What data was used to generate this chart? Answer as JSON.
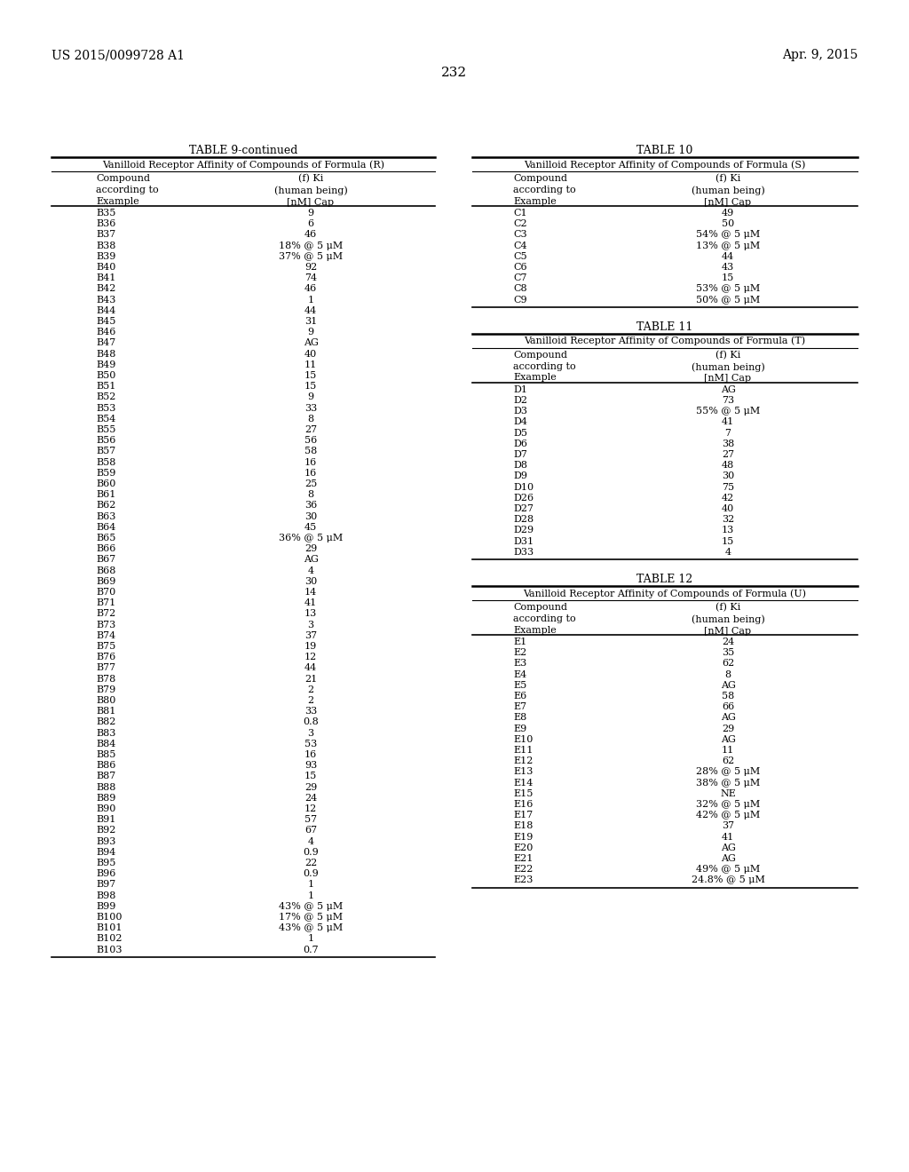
{
  "header_left": "US 2015/0099728 A1",
  "header_right": "Apr. 9, 2015",
  "page_number": "232",
  "background_color": "#ffffff",
  "table9_title": "TABLE 9-continued",
  "table9_subtitle": "Vanilloid Receptor Affinity of Compounds of Formula (R)",
  "table9_col1_header": "Compound\naccording to\nExample",
  "table9_col2_header": "(f) Ki\n(human being)\n[nM] Cap",
  "table9_data": [
    [
      "B35",
      "9"
    ],
    [
      "B36",
      "6"
    ],
    [
      "B37",
      "46"
    ],
    [
      "B38",
      "18% @ 5 μM"
    ],
    [
      "B39",
      "37% @ 5 μM"
    ],
    [
      "B40",
      "92"
    ],
    [
      "B41",
      "74"
    ],
    [
      "B42",
      "46"
    ],
    [
      "B43",
      "1"
    ],
    [
      "B44",
      "44"
    ],
    [
      "B45",
      "31"
    ],
    [
      "B46",
      "9"
    ],
    [
      "B47",
      "AG"
    ],
    [
      "B48",
      "40"
    ],
    [
      "B49",
      "11"
    ],
    [
      "B50",
      "15"
    ],
    [
      "B51",
      "15"
    ],
    [
      "B52",
      "9"
    ],
    [
      "B53",
      "33"
    ],
    [
      "B54",
      "8"
    ],
    [
      "B55",
      "27"
    ],
    [
      "B56",
      "56"
    ],
    [
      "B57",
      "58"
    ],
    [
      "B58",
      "16"
    ],
    [
      "B59",
      "16"
    ],
    [
      "B60",
      "25"
    ],
    [
      "B61",
      "8"
    ],
    [
      "B62",
      "36"
    ],
    [
      "B63",
      "30"
    ],
    [
      "B64",
      "45"
    ],
    [
      "B65",
      "36% @ 5 μM"
    ],
    [
      "B66",
      "29"
    ],
    [
      "B67",
      "AG"
    ],
    [
      "B68",
      "4"
    ],
    [
      "B69",
      "30"
    ],
    [
      "B70",
      "14"
    ],
    [
      "B71",
      "41"
    ],
    [
      "B72",
      "13"
    ],
    [
      "B73",
      "3"
    ],
    [
      "B74",
      "37"
    ],
    [
      "B75",
      "19"
    ],
    [
      "B76",
      "12"
    ],
    [
      "B77",
      "44"
    ],
    [
      "B78",
      "21"
    ],
    [
      "B79",
      "2"
    ],
    [
      "B80",
      "2"
    ],
    [
      "B81",
      "33"
    ],
    [
      "B82",
      "0.8"
    ],
    [
      "B83",
      "3"
    ],
    [
      "B84",
      "53"
    ],
    [
      "B85",
      "16"
    ],
    [
      "B86",
      "93"
    ],
    [
      "B87",
      "15"
    ],
    [
      "B88",
      "29"
    ],
    [
      "B89",
      "24"
    ],
    [
      "B90",
      "12"
    ],
    [
      "B91",
      "57"
    ],
    [
      "B92",
      "67"
    ],
    [
      "B93",
      "4"
    ],
    [
      "B94",
      "0.9"
    ],
    [
      "B95",
      "22"
    ],
    [
      "B96",
      "0.9"
    ],
    [
      "B97",
      "1"
    ],
    [
      "B98",
      "1"
    ],
    [
      "B99",
      "43% @ 5 μM"
    ],
    [
      "B100",
      "17% @ 5 μM"
    ],
    [
      "B101",
      "43% @ 5 μM"
    ],
    [
      "B102",
      "1"
    ],
    [
      "B103",
      "0.7"
    ]
  ],
  "table10_title": "TABLE 10",
  "table10_subtitle": "Vanilloid Receptor Affinity of Compounds of Formula (S)",
  "table10_data": [
    [
      "C1",
      "49"
    ],
    [
      "C2",
      "50"
    ],
    [
      "C3",
      "54% @ 5 μM"
    ],
    [
      "C4",
      "13% @ 5 μM"
    ],
    [
      "C5",
      "44"
    ],
    [
      "C6",
      "43"
    ],
    [
      "C7",
      "15"
    ],
    [
      "C8",
      "53% @ 5 μM"
    ],
    [
      "C9",
      "50% @ 5 μM"
    ]
  ],
  "table11_title": "TABLE 11",
  "table11_subtitle": "Vanilloid Receptor Affinity of Compounds of Formula (T)",
  "table11_data": [
    [
      "D1",
      "AG"
    ],
    [
      "D2",
      "73"
    ],
    [
      "D3",
      "55% @ 5 μM"
    ],
    [
      "D4",
      "41"
    ],
    [
      "D5",
      "7"
    ],
    [
      "D6",
      "38"
    ],
    [
      "D7",
      "27"
    ],
    [
      "D8",
      "48"
    ],
    [
      "D9",
      "30"
    ],
    [
      "D10",
      "75"
    ],
    [
      "D26",
      "42"
    ],
    [
      "D27",
      "40"
    ],
    [
      "D28",
      "32"
    ],
    [
      "D29",
      "13"
    ],
    [
      "D31",
      "15"
    ],
    [
      "D33",
      "4"
    ]
  ],
  "table12_title": "TABLE 12",
  "table12_subtitle": "Vanilloid Receptor Affinity of Compounds of Formula (U)",
  "table12_data": [
    [
      "E1",
      "24"
    ],
    [
      "E2",
      "35"
    ],
    [
      "E3",
      "62"
    ],
    [
      "E4",
      "8"
    ],
    [
      "E5",
      "AG"
    ],
    [
      "E6",
      "58"
    ],
    [
      "E7",
      "66"
    ],
    [
      "E8",
      "AG"
    ],
    [
      "E9",
      "29"
    ],
    [
      "E10",
      "AG"
    ],
    [
      "E11",
      "11"
    ],
    [
      "E12",
      "62"
    ],
    [
      "E13",
      "28% @ 5 μM"
    ],
    [
      "E14",
      "38% @ 5 μM"
    ],
    [
      "E15",
      "NE"
    ],
    [
      "E16",
      "32% @ 5 μM"
    ],
    [
      "E17",
      "42% @ 5 μM"
    ],
    [
      "E18",
      "37"
    ],
    [
      "E19",
      "41"
    ],
    [
      "E20",
      "AG"
    ],
    [
      "E21",
      "AG"
    ],
    [
      "E22",
      "49% @ 5 μM"
    ],
    [
      "E23",
      "24.8% @ 5 μM"
    ]
  ]
}
